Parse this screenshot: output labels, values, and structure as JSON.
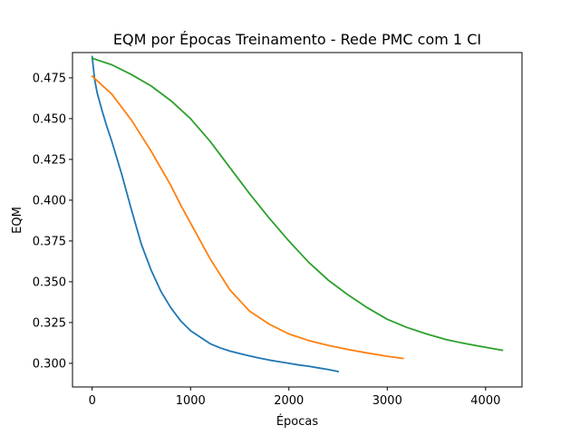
{
  "chart_data": {
    "type": "line",
    "title": "EQM por Épocas Treinamento - Rede PMC com 1 CI",
    "xlabel": "Épocas",
    "ylabel": "EQM",
    "xlim": [
      -200,
      4370
    ],
    "ylim": [
      0.2855,
      0.4905
    ],
    "xticks": [
      0,
      1000,
      2000,
      3000,
      4000
    ],
    "xtick_labels": [
      "0",
      "1000",
      "2000",
      "3000",
      "4000"
    ],
    "yticks": [
      0.3,
      0.325,
      0.35,
      0.375,
      0.4,
      0.425,
      0.45,
      0.475
    ],
    "ytick_labels": [
      "0.300",
      "0.325",
      "0.350",
      "0.375",
      "0.400",
      "0.425",
      "0.450",
      "0.475"
    ],
    "grid": false,
    "legend": "none",
    "series": [
      {
        "color": "#1f77b4",
        "x": [
          0,
          25,
          50,
          100,
          150,
          200,
          300,
          400,
          500,
          600,
          700,
          800,
          900,
          1000,
          1100,
          1200,
          1300,
          1400,
          1500,
          1600,
          1700,
          1800,
          1900,
          2000,
          2100,
          2200,
          2300,
          2400,
          2500
        ],
        "y": [
          0.488,
          0.474,
          0.466,
          0.455,
          0.445,
          0.436,
          0.416,
          0.394,
          0.373,
          0.357,
          0.344,
          0.334,
          0.326,
          0.32,
          0.316,
          0.312,
          0.3095,
          0.3075,
          0.306,
          0.3045,
          0.3032,
          0.302,
          0.301,
          0.3,
          0.299,
          0.2982,
          0.2972,
          0.2962,
          0.295
        ]
      },
      {
        "color": "#ff7f0e",
        "x": [
          0,
          200,
          400,
          600,
          800,
          900,
          1000,
          1100,
          1200,
          1400,
          1600,
          1800,
          2000,
          2200,
          2400,
          2600,
          2800,
          3000,
          3160
        ],
        "y": [
          0.476,
          0.465,
          0.449,
          0.43,
          0.409,
          0.397,
          0.386,
          0.375,
          0.364,
          0.345,
          0.332,
          0.324,
          0.318,
          0.314,
          0.311,
          0.3085,
          0.3063,
          0.3043,
          0.303
        ]
      },
      {
        "color": "#2ca02c",
        "x": [
          0,
          200,
          400,
          600,
          800,
          1000,
          1200,
          1400,
          1600,
          1800,
          2000,
          2200,
          2400,
          2600,
          2800,
          3000,
          3200,
          3400,
          3600,
          3800,
          4000,
          4170
        ],
        "y": [
          0.487,
          0.483,
          0.477,
          0.47,
          0.461,
          0.45,
          0.436,
          0.42,
          0.404,
          0.389,
          0.375,
          0.362,
          0.351,
          0.342,
          0.334,
          0.327,
          0.322,
          0.318,
          0.3145,
          0.312,
          0.3098,
          0.308
        ]
      }
    ]
  }
}
